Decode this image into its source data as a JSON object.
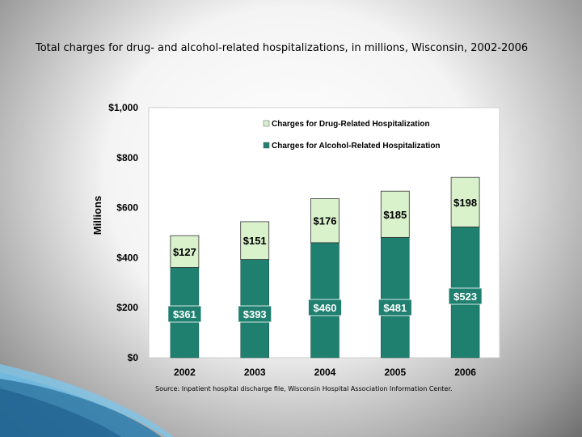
{
  "title": "Total charges for drug- and alcohol-related hospitalizations, in millions, Wisconsin, 2002-2006",
  "source": "Source:  Inpatient hospital discharge file, Wisconsin Hospital Association Information Center.",
  "colors": {
    "drug": "#d9f2cc",
    "alcohol": "#1f8070",
    "plot_bg": "#ffffff",
    "grid": "#000000"
  },
  "chart_data": {
    "type": "bar",
    "stacked": true,
    "categories": [
      "2002",
      "2003",
      "2004",
      "2005",
      "2006"
    ],
    "series": [
      {
        "name": "Charges for Alcohol-Related Hospitalization",
        "values": [
          361,
          393,
          460,
          481,
          523
        ],
        "labels": [
          "$361",
          "$393",
          "$460",
          "$481",
          "$523"
        ]
      },
      {
        "name": "Charges for Drug-Related Hospitalization",
        "values": [
          127,
          151,
          176,
          185,
          198
        ],
        "labels": [
          "$127",
          "$151",
          "$176",
          "$185",
          "$198"
        ]
      }
    ],
    "ylabel": "Millions",
    "ylim": [
      0,
      1000
    ],
    "yticks": [
      0,
      200,
      400,
      600,
      800,
      1000
    ],
    "ytick_labels": [
      "$0",
      "$200",
      "$400",
      "$600",
      "$800",
      "$1,000"
    ],
    "legend": [
      "Charges for Drug-Related Hospitalization",
      "Charges for Alcohol-Related Hospitalization"
    ],
    "legend_position": "top-right"
  }
}
